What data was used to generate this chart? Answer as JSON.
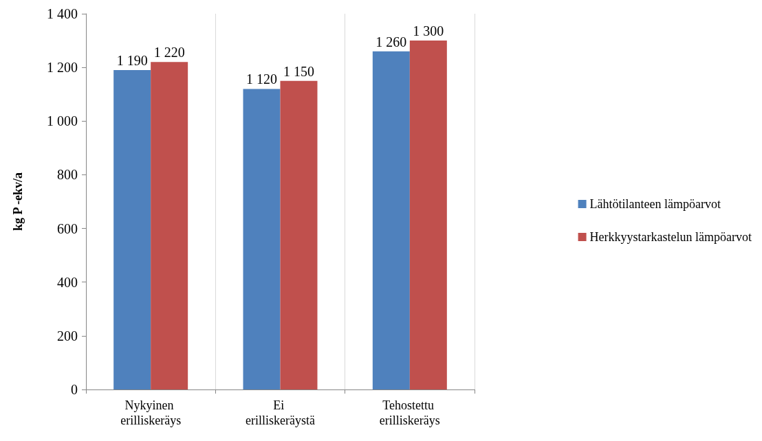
{
  "chart_data": {
    "type": "bar",
    "ylabel": "kg P -ekv/a",
    "categories": [
      "Nykyinen erilliskeräys",
      "Ei erilliskeräystä",
      "Tehostettu erilliskeräys"
    ],
    "series": [
      {
        "name": "Lähtötilanteen lämpöarvot",
        "color": "#4f81bd",
        "values": [
          1190,
          1120,
          1260
        ],
        "value_labels": [
          "1 190",
          "1 120",
          "1 260"
        ]
      },
      {
        "name": "Herkkyystarkastelun lämpöarvot",
        "color": "#c0504d",
        "values": [
          1220,
          1150,
          1300
        ],
        "value_labels": [
          "1 220",
          "1 150",
          "1 300"
        ]
      }
    ],
    "ylim": [
      0,
      1400
    ],
    "yticks": [
      0,
      200,
      400,
      600,
      800,
      {
        "value": 1000,
        "label": "1 000"
      },
      {
        "value": 1200,
        "label": "1 200"
      },
      {
        "value": 1400,
        "label": "1 400"
      }
    ],
    "grid": "x",
    "legend": "right"
  }
}
